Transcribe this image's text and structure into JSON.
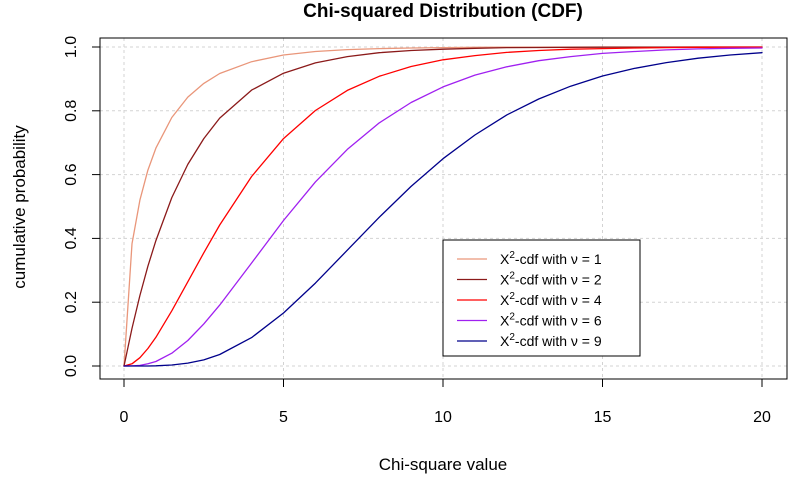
{
  "chart_data": {
    "type": "line",
    "title": "Chi-squared Distribution (CDF)",
    "xlabel": "Chi-square value",
    "ylabel": "cumulative probability",
    "xlim": [
      0,
      20
    ],
    "ylim": [
      0,
      1
    ],
    "x_ticks": [
      "0",
      "5",
      "10",
      "15",
      "20"
    ],
    "y_ticks": [
      "0.0",
      "0.2",
      "0.4",
      "0.6",
      "0.8",
      "1.0"
    ],
    "grid": true,
    "legend_position": "bottom-right",
    "x": [
      0,
      0.25,
      0.5,
      0.75,
      1,
      1.5,
      2,
      2.5,
      3,
      4,
      5,
      6,
      7,
      8,
      9,
      10,
      11,
      12,
      13,
      14,
      15,
      16,
      17,
      18,
      19,
      20
    ],
    "series": [
      {
        "name": "X²-cdf with ν = 1",
        "legend_prefix": "X",
        "legend_sup": "2",
        "legend_suffix": "-cdf with ν = 1",
        "color": "#E9967A",
        "values": [
          0,
          0.383,
          0.52,
          0.614,
          0.683,
          0.779,
          0.843,
          0.886,
          0.917,
          0.954,
          0.975,
          0.986,
          0.992,
          0.995,
          0.997,
          0.998,
          0.999,
          0.9995,
          0.9997,
          0.9998,
          0.9999,
          0.9999,
          1,
          1,
          1,
          1
        ]
      },
      {
        "name": "X²-cdf with ν = 2",
        "legend_prefix": "X",
        "legend_sup": "2",
        "legend_suffix": "-cdf with ν = 2",
        "color": "#8B1A1A",
        "values": [
          0,
          0.118,
          0.221,
          0.313,
          0.393,
          0.528,
          0.632,
          0.713,
          0.777,
          0.865,
          0.918,
          0.95,
          0.97,
          0.982,
          0.989,
          0.993,
          0.996,
          0.998,
          0.9985,
          0.9991,
          0.9994,
          0.9997,
          0.9998,
          0.9999,
          0.9999,
          1
        ]
      },
      {
        "name": "X²-cdf with ν = 4",
        "legend_prefix": "X",
        "legend_sup": "2",
        "legend_suffix": "-cdf with ν = 4",
        "color": "#FF0000",
        "values": [
          0,
          0.007,
          0.026,
          0.055,
          0.09,
          0.173,
          0.264,
          0.355,
          0.442,
          0.594,
          0.713,
          0.801,
          0.864,
          0.908,
          0.939,
          0.96,
          0.973,
          0.983,
          0.989,
          0.993,
          0.995,
          0.997,
          0.998,
          0.999,
          0.9993,
          0.9995
        ]
      },
      {
        "name": "X²-cdf with ν = 6",
        "legend_prefix": "X",
        "legend_sup": "2",
        "legend_suffix": "-cdf with ν = 6",
        "color": "#A020F0",
        "values": [
          0,
          0.0003,
          0.002,
          0.007,
          0.014,
          0.04,
          0.08,
          0.132,
          0.191,
          0.323,
          0.456,
          0.577,
          0.679,
          0.762,
          0.826,
          0.875,
          0.912,
          0.938,
          0.957,
          0.97,
          0.98,
          0.986,
          0.991,
          0.994,
          0.996,
          0.997
        ]
      },
      {
        "name": "X²-cdf with ν = 9",
        "legend_prefix": "X",
        "legend_sup": "2",
        "legend_suffix": "-cdf with ν = 9",
        "color": "#00008B",
        "values": [
          0,
          0,
          3e-05,
          0.0001,
          0.0006,
          0.003,
          0.009,
          0.019,
          0.036,
          0.089,
          0.166,
          0.26,
          0.363,
          0.466,
          0.563,
          0.65,
          0.724,
          0.787,
          0.837,
          0.877,
          0.909,
          0.933,
          0.951,
          0.965,
          0.975,
          0.982
        ]
      }
    ]
  }
}
